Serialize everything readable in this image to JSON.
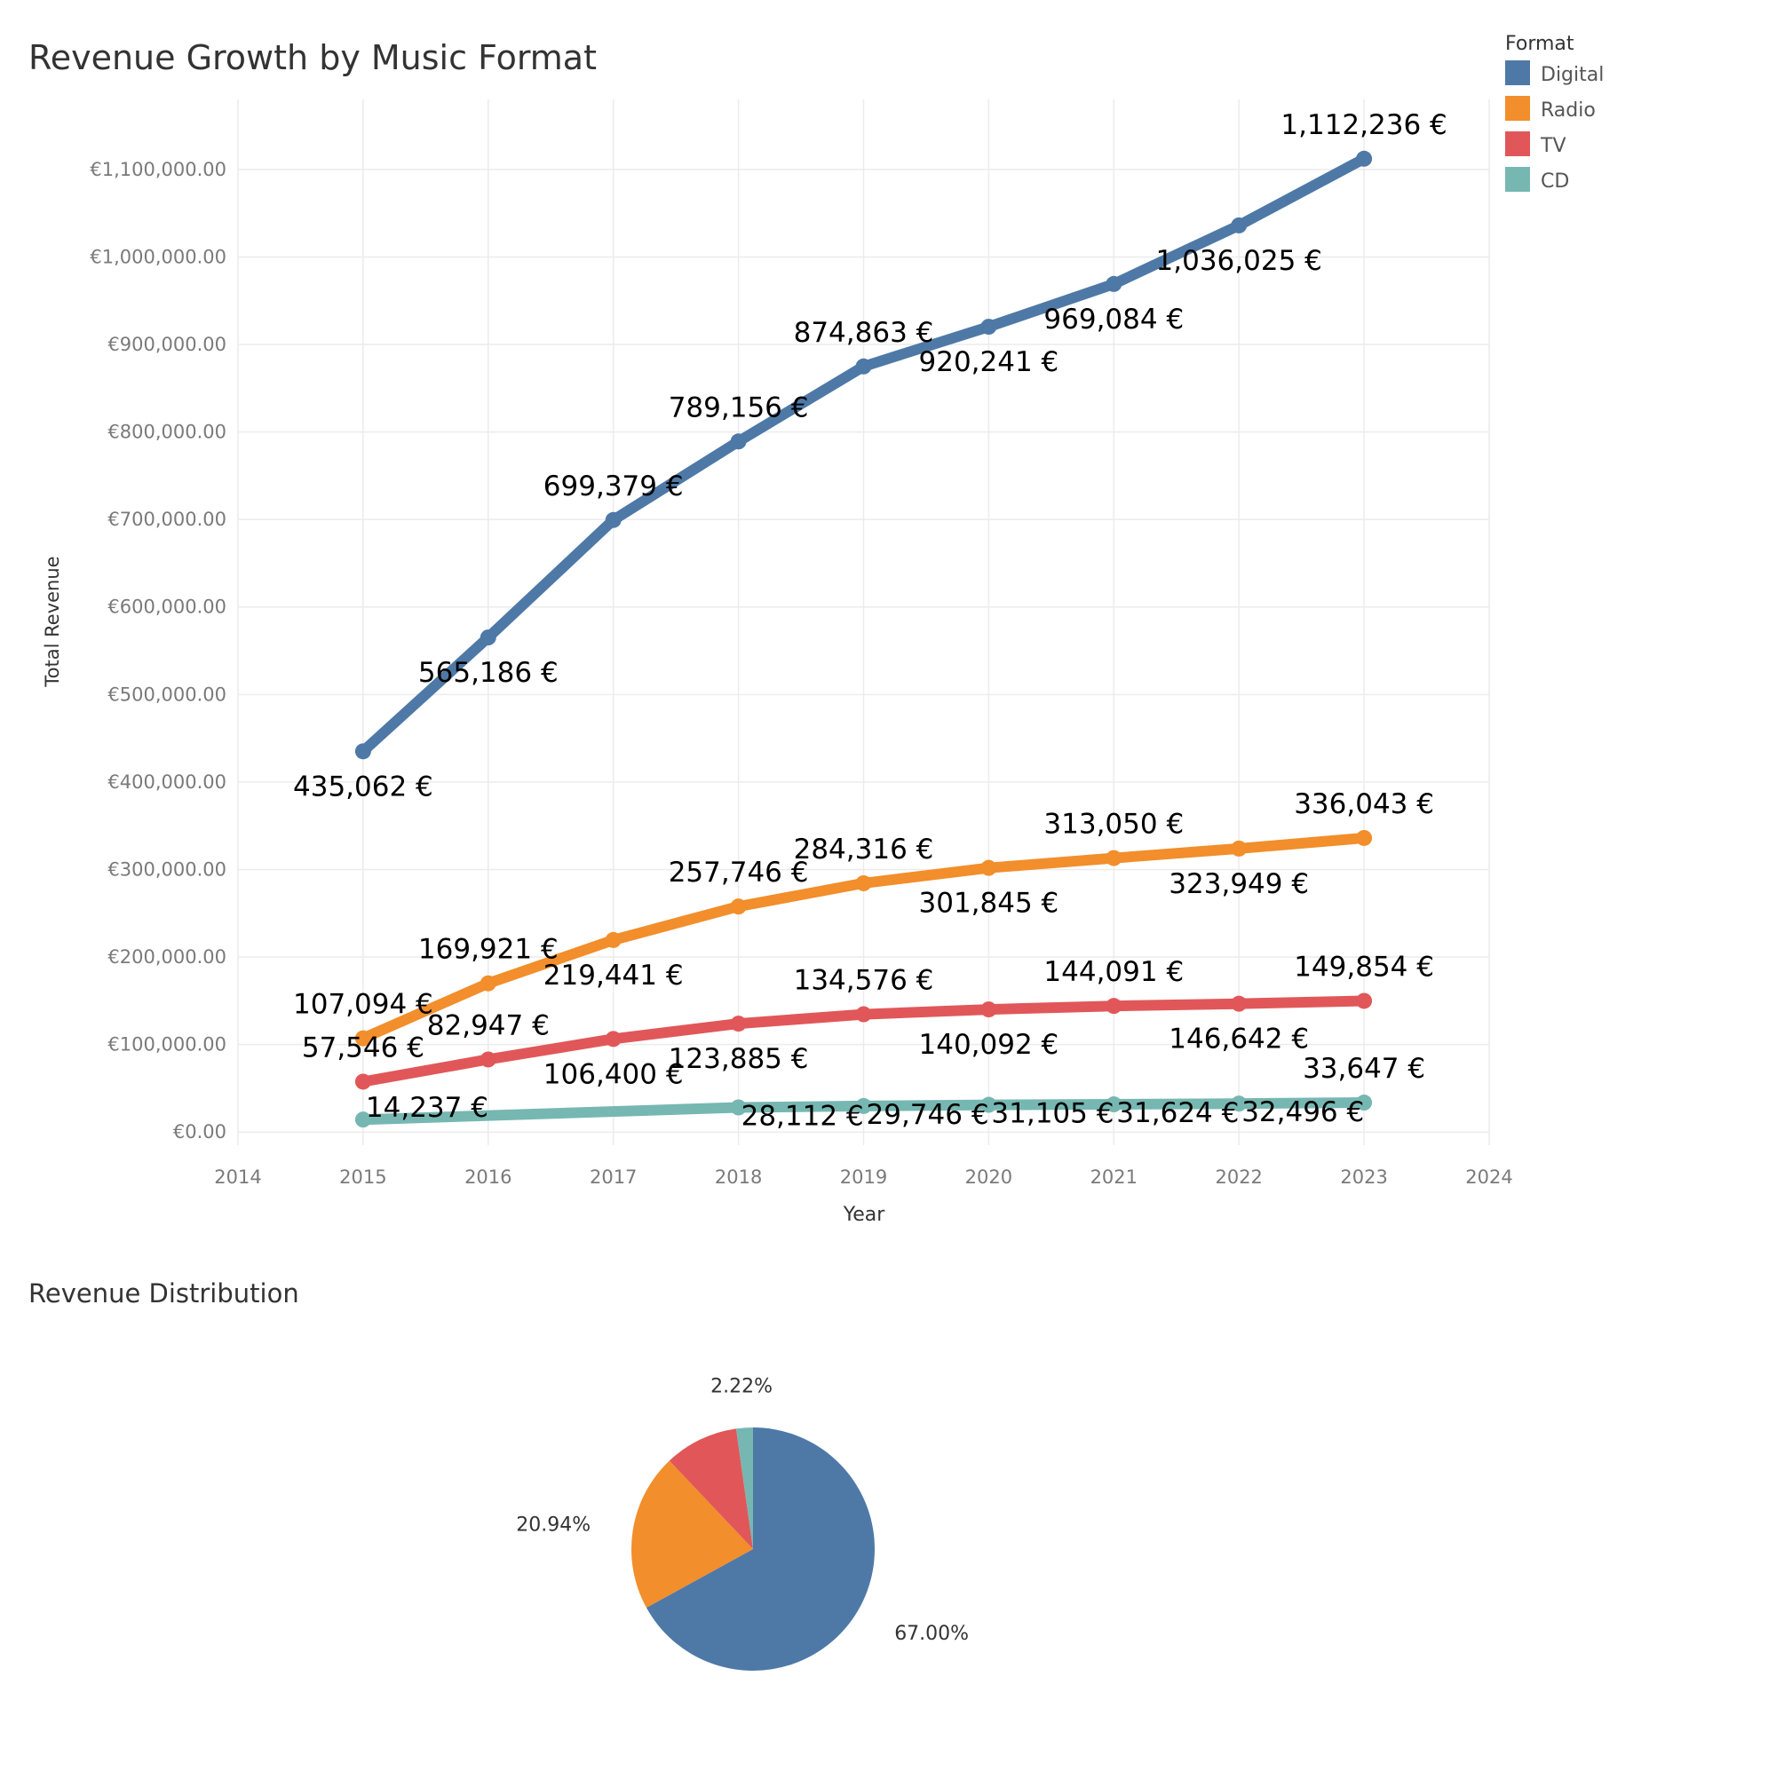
{
  "chart_data": [
    {
      "type": "line",
      "title": "Revenue Growth by Music Format",
      "xlabel": "Year",
      "ylabel": "Total Revenue",
      "x": [
        2015,
        2016,
        2017,
        2018,
        2019,
        2020,
        2021,
        2022,
        2023
      ],
      "xlim": [
        2014,
        2024
      ],
      "x_ticks": [
        "2014",
        "2015",
        "2016",
        "2017",
        "2018",
        "2019",
        "2020",
        "2021",
        "2022",
        "2023",
        "2024"
      ],
      "ylim": [
        -15000,
        1180000
      ],
      "y_ticks": [
        0,
        100000,
        200000,
        300000,
        400000,
        500000,
        600000,
        700000,
        800000,
        900000,
        1000000,
        1100000
      ],
      "y_tick_labels": [
        "€0.00",
        "€100,000.00",
        "€200,000.00",
        "€300,000.00",
        "€400,000.00",
        "€500,000.00",
        "€600,000.00",
        "€700,000.00",
        "€800,000.00",
        "€900,000.00",
        "€1,000,000.00",
        "€1,100,000.00"
      ],
      "grid": true,
      "legend": {
        "title": "Format",
        "placement": "top-right",
        "entries": [
          {
            "name": "Digital",
            "color": "#4e79a7"
          },
          {
            "name": "Radio",
            "color": "#f28e2b"
          },
          {
            "name": "TV",
            "color": "#e15759"
          },
          {
            "name": "CD",
            "color": "#76b7b2"
          }
        ]
      },
      "series": [
        {
          "name": "Digital",
          "color": "#4e79a7",
          "values": [
            435062,
            565186,
            699379,
            789156,
            874863,
            920241,
            969084,
            1036025,
            1112236
          ],
          "labels": [
            "435,062 €",
            "565,186 €",
            "699,379 €",
            "789,156 €",
            "874,863 €",
            "920,241 €",
            "969,084 €",
            "1,036,025 €",
            "1,112,236 €"
          ]
        },
        {
          "name": "Radio",
          "color": "#f28e2b",
          "values": [
            107094,
            169921,
            219441,
            257746,
            284316,
            301845,
            313050,
            323949,
            336043
          ],
          "labels": [
            "107,094 €",
            "169,921 €",
            "219,441 €",
            "257,746 €",
            "284,316 €",
            "301,845 €",
            "313,050 €",
            "323,949 €",
            "336,043 €"
          ]
        },
        {
          "name": "TV",
          "color": "#e15759",
          "values": [
            57546,
            82947,
            106400,
            123885,
            134576,
            140092,
            144091,
            146642,
            149854
          ],
          "labels": [
            "57,546 €",
            "82,947 €",
            "106,400 €",
            "123,885 €",
            "134,576 €",
            "140,092 €",
            "144,091 €",
            "146,642 €",
            "149,854 €"
          ]
        },
        {
          "name": "CD",
          "color": "#76b7b2",
          "values": [
            14237,
            null,
            null,
            28112,
            29746,
            31105,
            31624,
            32496,
            33647
          ],
          "labels": [
            "14,237 €",
            "",
            "",
            "28,112 €",
            "29,746 €",
            "31,105 €",
            "31,624 €",
            "32,496 €",
            "33,647 €"
          ]
        }
      ]
    },
    {
      "type": "pie",
      "title": "Revenue Distribution",
      "slices": [
        {
          "name": "Digital",
          "value": 67.0,
          "label": "67.00%",
          "color": "#4e79a7"
        },
        {
          "name": "Radio",
          "value": 20.94,
          "label": "20.94%",
          "color": "#f28e2b"
        },
        {
          "name": "TV",
          "value": 9.84,
          "label": "",
          "color": "#e15759"
        },
        {
          "name": "CD",
          "value": 2.22,
          "label": "2.22%",
          "color": "#76b7b2"
        }
      ]
    }
  ]
}
